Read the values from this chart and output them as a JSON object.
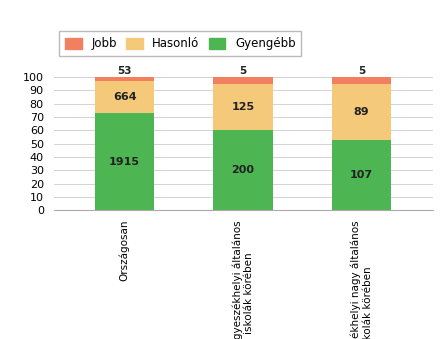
{
  "categories": [
    "Országosan",
    "A megyeszékhelyi általános\niskolák körében",
    "A megyeszékhelyi nagy általános\niskolák körében"
  ],
  "gyengebb_pct": [
    73,
    60,
    53
  ],
  "hasonlo_pct": [
    24,
    35,
    42
  ],
  "jobb_pct": [
    3,
    5,
    5
  ],
  "gyengebb_labels": [
    "1915",
    "200",
    "107"
  ],
  "hasonlo_labels": [
    "664",
    "125",
    "89"
  ],
  "jobb_labels": [
    "53",
    "5",
    "5"
  ],
  "color_gyengebb": "#4db552",
  "color_hasonlo": "#f5c97a",
  "color_jobb": "#f08060",
  "ylabel_ticks": [
    0,
    10,
    20,
    30,
    40,
    50,
    60,
    70,
    80,
    90,
    100
  ],
  "bar_width": 0.5,
  "background_color": "#ffffff"
}
